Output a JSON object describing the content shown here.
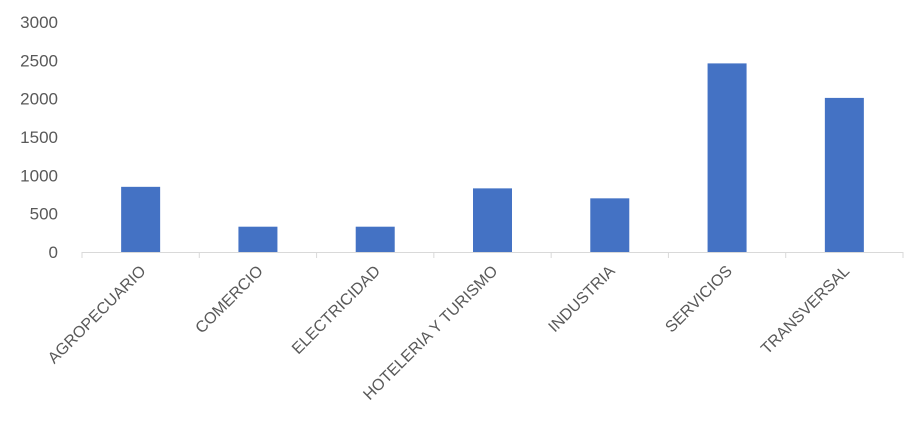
{
  "chart_data": {
    "type": "bar",
    "categories": [
      "AGROPECUARIO",
      "COMERCIO",
      "ELECTRICIDAD",
      "HOTELERIA Y TURISMO",
      "INDUSTRIA",
      "SERVICIOS",
      "TRANSVERSAL"
    ],
    "values": [
      850,
      330,
      330,
      830,
      700,
      2460,
      2010
    ],
    "title": "",
    "xlabel": "",
    "ylabel": "",
    "ylim": [
      0,
      3000
    ],
    "yticks": [
      0,
      500,
      1000,
      1500,
      2000,
      2500,
      3000
    ],
    "grid": false,
    "legend": "none",
    "colors": {
      "bar": "#4472C4",
      "axis": "#D9D9D9",
      "text": "#595959"
    }
  }
}
